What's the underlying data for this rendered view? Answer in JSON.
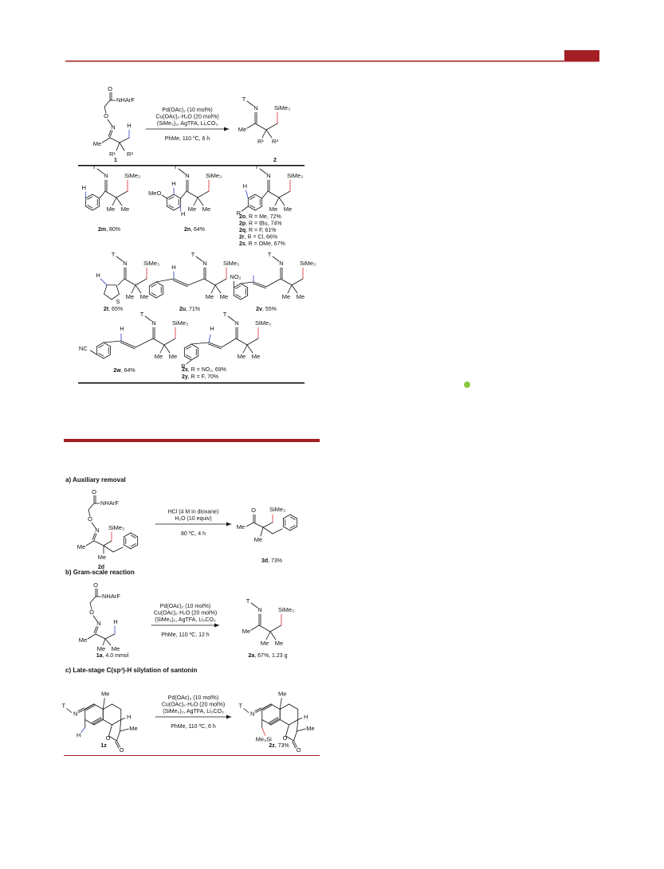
{
  "scheme1": {
    "reactant": {
      "labels": [
        "O",
        "NHArF",
        "O",
        "N",
        "Me",
        "H",
        "R¹",
        "R²"
      ],
      "caption": {
        "id": "1"
      }
    },
    "conditions": [
      "Pd(OAc)₂ (10 mol%)",
      "Cu(OAc)₂·H₂O (20 mol%)",
      "(SiMe₃)₂, AgTFA, Li₂CO₃",
      "PhMe, 110 ºC, 6 h"
    ],
    "product": {
      "labels": [
        "T",
        "N",
        "SiMe₃",
        "R¹",
        "R²",
        "Me"
      ],
      "caption": {
        "id": "2"
      }
    },
    "examples": [
      {
        "labels": [
          "T",
          "N",
          "SiMe₃",
          "Me",
          "Me",
          "H"
        ],
        "captions": [
          {
            "id": "2m",
            "text": ", 80%"
          }
        ]
      },
      {
        "labels": [
          "T",
          "N",
          "SiMe₃",
          "Me",
          "Me",
          "H",
          "MeO",
          "H"
        ],
        "captions": [
          {
            "id": "2n",
            "text": ", 64%"
          }
        ]
      },
      {
        "labels": [
          "T",
          "N",
          "SiMe₃",
          "Me",
          "Me",
          "H",
          "R"
        ],
        "captions": [
          {
            "id": "2o",
            "text": ", R = Me, 72%"
          },
          {
            "id": "2p",
            "text": ", R = tBu, 74%"
          },
          {
            "id": "2q",
            "text": ", R = F, 61%"
          },
          {
            "id": "2r",
            "text": ", R = Cl, 66%"
          },
          {
            "id": "2s",
            "text": ", R = OMe, 67%"
          }
        ]
      },
      {
        "labels": [
          "T",
          "N",
          "SiMe₃",
          "Me",
          "Me",
          "H",
          "S"
        ],
        "captions": [
          {
            "id": "2t",
            "text": ", 65%"
          }
        ]
      },
      {
        "labels": [
          "T",
          "N",
          "SiMe₃",
          "Me",
          "Me",
          "H"
        ],
        "captions": [
          {
            "id": "2u",
            "text": ", 71%"
          }
        ]
      },
      {
        "labels": [
          "T",
          "N",
          "SiMe₃",
          "Me",
          "Me",
          "NO₂"
        ],
        "captions": [
          {
            "id": "2v",
            "text": ", 55%"
          }
        ]
      },
      {
        "labels": [
          "T",
          "N",
          "SiMe₃",
          "Me",
          "Me",
          "H",
          "NC"
        ],
        "captions": [
          {
            "id": "2w",
            "text": ", 64%"
          }
        ]
      },
      {
        "labels": [
          "T",
          "N",
          "SiMe₃",
          "Me",
          "Me",
          "H",
          "R"
        ],
        "captions": [
          {
            "id": "2x",
            "text": ", R = NO₂, 69%"
          },
          {
            "id": "2y",
            "text": ", R = F, 70%"
          }
        ]
      }
    ]
  },
  "scheme2": {
    "sections": [
      {
        "heading": "a) Auxiliary removal",
        "reactant": {
          "labels": [
            "O",
            "NHArF",
            "O",
            "N",
            "Me",
            "SiMe₃",
            "Me"
          ],
          "caption": {
            "id": "2d"
          }
        },
        "conditions": [
          "HCl (4 M in dioxane)",
          "H₂O (10 equiv)",
          "80 ºC, 4 h"
        ],
        "product": {
          "labels": [
            "O",
            "Me",
            "SiMe₃",
            "Me"
          ],
          "caption": {
            "id": "3d",
            "text": ", 73%"
          }
        }
      },
      {
        "heading": "b) Gram-scale reaction",
        "reactant": {
          "labels": [
            "O",
            "NHArF",
            "O",
            "N",
            "Me",
            "H",
            "Me",
            "Me"
          ],
          "caption": {
            "id": "1a",
            "text": ", 4.0 mmol"
          }
        },
        "conditions": [
          "Pd(OAc)₂ (10 mol%)",
          "Cu(OAc)₂·H₂O (20 mol%)",
          "(SiMe₃)₂, AgTFA, Li₂CO₃",
          "PhMe, 110 ºC, 12 h"
        ],
        "product": {
          "labels": [
            "T",
            "N",
            "SiMe₃",
            "Me",
            "Me",
            "Me"
          ],
          "caption": {
            "id": "2a",
            "text": ", 67%, 1.23 g"
          }
        }
      },
      {
        "heading": "c) Late-stage C(sp³)-H silylation of santonin",
        "reactant": {
          "labels": [
            "Me",
            "H",
            "Me",
            "O",
            "O",
            "T",
            "N",
            "H"
          ],
          "caption": {
            "id": "1z"
          }
        },
        "conditions": [
          "Pd(OAc)₂ (10 mol%)",
          "Cu(OAc)₂·H₂O (20 mol%)",
          "(SiMe₃)₂, AgTFA, Li₂CO₃",
          "PhMe, 110 ºC, 6 h"
        ],
        "product": {
          "labels": [
            "Me",
            "H",
            "Me",
            "O",
            "O",
            "T",
            "N",
            "Me₃Si"
          ],
          "caption": {
            "id": "2z",
            "text": ", 73%"
          }
        }
      }
    ]
  }
}
